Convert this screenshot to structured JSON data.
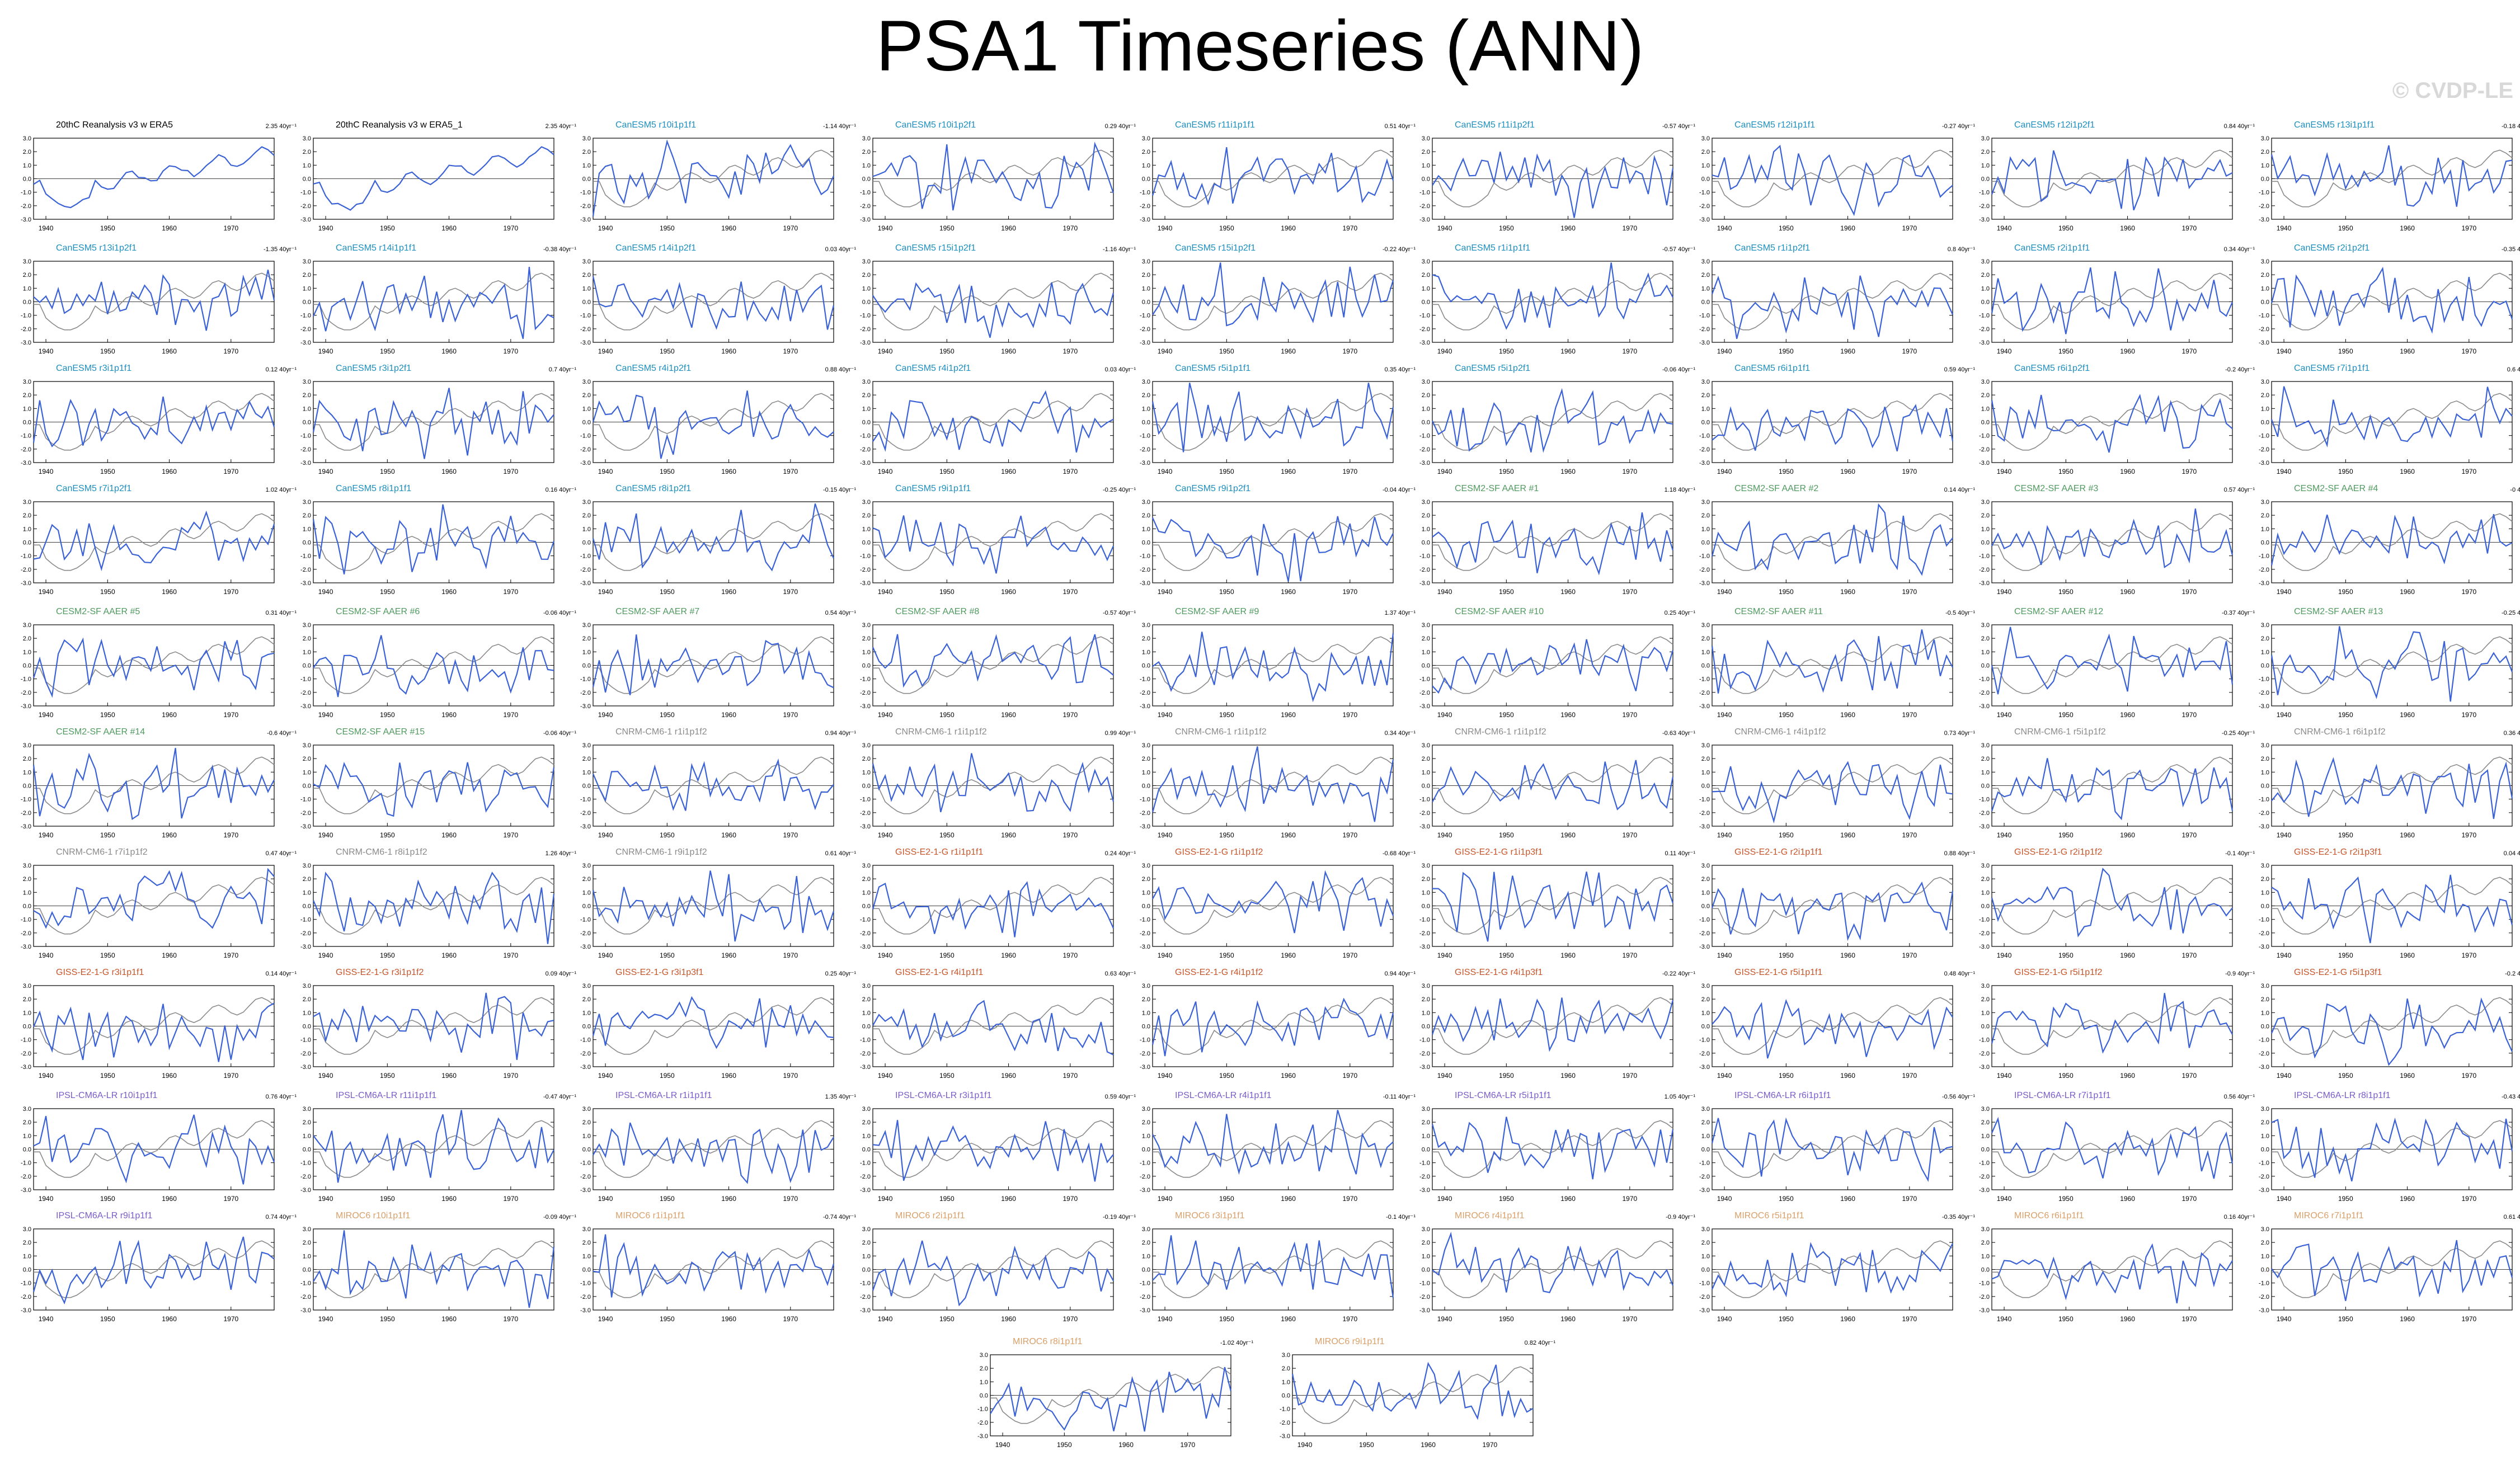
{
  "title": "PSA1 Timeseries (ANN)",
  "watermark": "© CVDP-LE",
  "colors": {
    "member_line": "#3a62d6",
    "observed_line": "#8a8a8a",
    "obs_label": "#000000",
    "CanESM5": "#1d8fbf",
    "CESM2-SF AAER": "#4f9a5e",
    "CNRM-CM6-1": "#8a8a8a",
    "GISS-E2-1-G": "#c8552a",
    "IPSL-CM6A-LR": "#7a5cc9",
    "MIROC6": "#d9a06a"
  },
  "chart_data": {
    "type": "line",
    "layout": "small multiples of annual PSA1 index timeseries",
    "x_ticks": [
      1940,
      1950,
      1960,
      1970
    ],
    "xlim": [
      1938,
      1977
    ],
    "y_ticks": [
      "3.0",
      "2.0",
      "1.0",
      "0.0",
      "-1.0",
      "-2.0",
      "-3.0"
    ],
    "ylim": [
      -3,
      3
    ],
    "trend_unit": "40yr⁻¹",
    "panels": [
      {
        "name": "20thC Reanalysis v3 w ERA5",
        "group": "obs",
        "trend": "2.35 40yr⁻¹"
      },
      {
        "name": "20thC Reanalysis v3 w ERA5_1",
        "group": "obs",
        "trend": "2.35 40yr⁻¹"
      },
      {
        "name": "CanESM5 r10i1p1f1",
        "group": "CanESM5",
        "trend": "-1.14 40yr⁻¹"
      },
      {
        "name": "CanESM5 r10i1p2f1",
        "group": "CanESM5",
        "trend": "0.29 40yr⁻¹"
      },
      {
        "name": "CanESM5 r11i1p1f1",
        "group": "CanESM5",
        "trend": "0.51 40yr⁻¹"
      },
      {
        "name": "CanESM5 r11i1p2f1",
        "group": "CanESM5",
        "trend": "-0.57 40yr⁻¹"
      },
      {
        "name": "CanESM5 r12i1p1f1",
        "group": "CanESM5",
        "trend": "-0.27 40yr⁻¹"
      },
      {
        "name": "CanESM5 r12i1p2f1",
        "group": "CanESM5",
        "trend": "0.84 40yr⁻¹"
      },
      {
        "name": "CanESM5 r13i1p1f1",
        "group": "CanESM5",
        "trend": "-0.18 40yr⁻¹"
      },
      {
        "name": "CanESM5 r13i1p2f1",
        "group": "CanESM5",
        "trend": "-1.35 40yr⁻¹"
      },
      {
        "name": "CanESM5 r14i1p1f1",
        "group": "CanESM5",
        "trend": "-0.38 40yr⁻¹"
      },
      {
        "name": "CanESM5 r14i1p2f1",
        "group": "CanESM5",
        "trend": "0.03 40yr⁻¹"
      },
      {
        "name": "CanESM5 r15i1p2f1",
        "group": "CanESM5",
        "trend": "-1.16 40yr⁻¹"
      },
      {
        "name": "CanESM5 r15i1p2f1",
        "group": "CanESM5",
        "trend": "-0.22 40yr⁻¹"
      },
      {
        "name": "CanESM5 r1i1p1f1",
        "group": "CanESM5",
        "trend": "-0.57 40yr⁻¹"
      },
      {
        "name": "CanESM5 r1i1p2f1",
        "group": "CanESM5",
        "trend": "0.8 40yr⁻¹"
      },
      {
        "name": "CanESM5 r2i1p1f1",
        "group": "CanESM5",
        "trend": "0.34 40yr⁻¹"
      },
      {
        "name": "CanESM5 r2i1p2f1",
        "group": "CanESM5",
        "trend": "-0.35 40yr⁻¹"
      },
      {
        "name": "CanESM5 r3i1p1f1",
        "group": "CanESM5",
        "trend": "0.12 40yr⁻¹"
      },
      {
        "name": "CanESM5 r3i1p2f1",
        "group": "CanESM5",
        "trend": "0.7 40yr⁻¹"
      },
      {
        "name": "CanESM5 r4i1p2f1",
        "group": "CanESM5",
        "trend": "0.88 40yr⁻¹"
      },
      {
        "name": "CanESM5 r4i1p2f1",
        "group": "CanESM5",
        "trend": "0.03 40yr⁻¹"
      },
      {
        "name": "CanESM5 r5i1p1f1",
        "group": "CanESM5",
        "trend": "0.35 40yr⁻¹"
      },
      {
        "name": "CanESM5 r5i1p2f1",
        "group": "CanESM5",
        "trend": "-0.06 40yr⁻¹"
      },
      {
        "name": "CanESM5 r6i1p1f1",
        "group": "CanESM5",
        "trend": "0.59 40yr⁻¹"
      },
      {
        "name": "CanESM5 r6i1p2f1",
        "group": "CanESM5",
        "trend": "-0.2 40yr⁻¹"
      },
      {
        "name": "CanESM5 r7i1p1f1",
        "group": "CanESM5",
        "trend": "0.6 40yr⁻¹"
      },
      {
        "name": "CanESM5 r7i1p2f1",
        "group": "CanESM5",
        "trend": "1.02 40yr⁻¹"
      },
      {
        "name": "CanESM5 r8i1p1f1",
        "group": "CanESM5",
        "trend": "0.16 40yr⁻¹"
      },
      {
        "name": "CanESM5 r8i1p2f1",
        "group": "CanESM5",
        "trend": "-0.15 40yr⁻¹"
      },
      {
        "name": "CanESM5 r9i1p1f1",
        "group": "CanESM5",
        "trend": "-0.25 40yr⁻¹"
      },
      {
        "name": "CanESM5 r9i1p2f1",
        "group": "CanESM5",
        "trend": "-0.04 40yr⁻¹"
      },
      {
        "name": "CESM2-SF AAER #1",
        "group": "CESM2-SF AAER",
        "trend": "1.18 40yr⁻¹"
      },
      {
        "name": "CESM2-SF AAER #2",
        "group": "CESM2-SF AAER",
        "trend": "0.14 40yr⁻¹"
      },
      {
        "name": "CESM2-SF AAER #3",
        "group": "CESM2-SF AAER",
        "trend": "0.57 40yr⁻¹"
      },
      {
        "name": "CESM2-SF AAER #4",
        "group": "CESM2-SF AAER",
        "trend": "-0 40yr⁻¹"
      },
      {
        "name": "CESM2-SF AAER #5",
        "group": "CESM2-SF AAER",
        "trend": "0.31 40yr⁻¹"
      },
      {
        "name": "CESM2-SF AAER #6",
        "group": "CESM2-SF AAER",
        "trend": "-0.06 40yr⁻¹"
      },
      {
        "name": "CESM2-SF AAER #7",
        "group": "CESM2-SF AAER",
        "trend": "0.54 40yr⁻¹"
      },
      {
        "name": "CESM2-SF AAER #8",
        "group": "CESM2-SF AAER",
        "trend": "-0.57 40yr⁻¹"
      },
      {
        "name": "CESM2-SF AAER #9",
        "group": "CESM2-SF AAER",
        "trend": "1.37 40yr⁻¹"
      },
      {
        "name": "CESM2-SF AAER #10",
        "group": "CESM2-SF AAER",
        "trend": "0.25 40yr⁻¹"
      },
      {
        "name": "CESM2-SF AAER #11",
        "group": "CESM2-SF AAER",
        "trend": "-0.5 40yr⁻¹"
      },
      {
        "name": "CESM2-SF AAER #12",
        "group": "CESM2-SF AAER",
        "trend": "-0.37 40yr⁻¹"
      },
      {
        "name": "CESM2-SF AAER #13",
        "group": "CESM2-SF AAER",
        "trend": "-0.25 40yr⁻¹"
      },
      {
        "name": "CESM2-SF AAER #14",
        "group": "CESM2-SF AAER",
        "trend": "-0.6 40yr⁻¹"
      },
      {
        "name": "CESM2-SF AAER #15",
        "group": "CESM2-SF AAER",
        "trend": "-0.06 40yr⁻¹"
      },
      {
        "name": "CNRM-CM6-1 r1i1p1f2",
        "group": "CNRM-CM6-1",
        "trend": "0.94 40yr⁻¹"
      },
      {
        "name": "CNRM-CM6-1 r1i1p1f2",
        "group": "CNRM-CM6-1",
        "trend": "0.99 40yr⁻¹"
      },
      {
        "name": "CNRM-CM6-1 r1i1p1f2",
        "group": "CNRM-CM6-1",
        "trend": "0.34 40yr⁻¹"
      },
      {
        "name": "CNRM-CM6-1 r1i1p1f2",
        "group": "CNRM-CM6-1",
        "trend": "-0.63 40yr⁻¹"
      },
      {
        "name": "CNRM-CM6-1 r4i1p1f2",
        "group": "CNRM-CM6-1",
        "trend": "0.73 40yr⁻¹"
      },
      {
        "name": "CNRM-CM6-1 r5i1p1f2",
        "group": "CNRM-CM6-1",
        "trend": "-0.25 40yr⁻¹"
      },
      {
        "name": "CNRM-CM6-1 r6i1p1f2",
        "group": "CNRM-CM6-1",
        "trend": "0.36 40yr⁻¹"
      },
      {
        "name": "CNRM-CM6-1 r7i1p1f2",
        "group": "CNRM-CM6-1",
        "trend": "0.47 40yr⁻¹"
      },
      {
        "name": "CNRM-CM6-1 r8i1p1f2",
        "group": "CNRM-CM6-1",
        "trend": "1.26 40yr⁻¹"
      },
      {
        "name": "CNRM-CM6-1 r9i1p1f2",
        "group": "CNRM-CM6-1",
        "trend": "0.61 40yr⁻¹"
      },
      {
        "name": "GISS-E2-1-G r1i1p1f1",
        "group": "GISS-E2-1-G",
        "trend": "0.24 40yr⁻¹"
      },
      {
        "name": "GISS-E2-1-G r1i1p1f2",
        "group": "GISS-E2-1-G",
        "trend": "-0.68 40yr⁻¹"
      },
      {
        "name": "GISS-E2-1-G r1i1p3f1",
        "group": "GISS-E2-1-G",
        "trend": "0.11 40yr⁻¹"
      },
      {
        "name": "GISS-E2-1-G r2i1p1f1",
        "group": "GISS-E2-1-G",
        "trend": "0.88 40yr⁻¹"
      },
      {
        "name": "GISS-E2-1-G r2i1p1f2",
        "group": "GISS-E2-1-G",
        "trend": "-0.1 40yr⁻¹"
      },
      {
        "name": "GISS-E2-1-G r2i1p3f1",
        "group": "GISS-E2-1-G",
        "trend": "0.04 40yr⁻¹"
      },
      {
        "name": "GISS-E2-1-G r3i1p1f1",
        "group": "GISS-E2-1-G",
        "trend": "0.14 40yr⁻¹"
      },
      {
        "name": "GISS-E2-1-G r3i1p1f2",
        "group": "GISS-E2-1-G",
        "trend": "0.09 40yr⁻¹"
      },
      {
        "name": "GISS-E2-1-G r3i1p3f1",
        "group": "GISS-E2-1-G",
        "trend": "0.25 40yr⁻¹"
      },
      {
        "name": "GISS-E2-1-G r4i1p1f1",
        "group": "GISS-E2-1-G",
        "trend": "0.63 40yr⁻¹"
      },
      {
        "name": "GISS-E2-1-G r4i1p1f2",
        "group": "GISS-E2-1-G",
        "trend": "0.94 40yr⁻¹"
      },
      {
        "name": "GISS-E2-1-G r4i1p3f1",
        "group": "GISS-E2-1-G",
        "trend": "-0.22 40yr⁻¹"
      },
      {
        "name": "GISS-E2-1-G r5i1p1f1",
        "group": "GISS-E2-1-G",
        "trend": "0.48 40yr⁻¹"
      },
      {
        "name": "GISS-E2-1-G r5i1p1f2",
        "group": "GISS-E2-1-G",
        "trend": "-0.9 40yr⁻¹"
      },
      {
        "name": "GISS-E2-1-G r5i1p3f1",
        "group": "GISS-E2-1-G",
        "trend": "-0.2 40yr⁻¹"
      },
      {
        "name": "IPSL-CM6A-LR r10i1p1f1",
        "group": "IPSL-CM6A-LR",
        "trend": "0.76 40yr⁻¹"
      },
      {
        "name": "IPSL-CM6A-LR r11i1p1f1",
        "group": "IPSL-CM6A-LR",
        "trend": "-0.47 40yr⁻¹"
      },
      {
        "name": "IPSL-CM6A-LR r1i1p1f1",
        "group": "IPSL-CM6A-LR",
        "trend": "1.35 40yr⁻¹"
      },
      {
        "name": "IPSL-CM6A-LR r3i1p1f1",
        "group": "IPSL-CM6A-LR",
        "trend": "0.59 40yr⁻¹"
      },
      {
        "name": "IPSL-CM6A-LR r4i1p1f1",
        "group": "IPSL-CM6A-LR",
        "trend": "-0.11 40yr⁻¹"
      },
      {
        "name": "IPSL-CM6A-LR r5i1p1f1",
        "group": "IPSL-CM6A-LR",
        "trend": "1.05 40yr⁻¹"
      },
      {
        "name": "IPSL-CM6A-LR r6i1p1f1",
        "group": "IPSL-CM6A-LR",
        "trend": "-0.56 40yr⁻¹"
      },
      {
        "name": "IPSL-CM6A-LR r7i1p1f1",
        "group": "IPSL-CM6A-LR",
        "trend": "0.56 40yr⁻¹"
      },
      {
        "name": "IPSL-CM6A-LR r8i1p1f1",
        "group": "IPSL-CM6A-LR",
        "trend": "-0.43 40yr⁻¹"
      },
      {
        "name": "IPSL-CM6A-LR r9i1p1f1",
        "group": "IPSL-CM6A-LR",
        "trend": "0.74 40yr⁻¹"
      },
      {
        "name": "MIROC6 r10i1p1f1",
        "group": "MIROC6",
        "trend": "-0.09 40yr⁻¹"
      },
      {
        "name": "MIROC6 r1i1p1f1",
        "group": "MIROC6",
        "trend": "-0.74 40yr⁻¹"
      },
      {
        "name": "MIROC6 r2i1p1f1",
        "group": "MIROC6",
        "trend": "-0.19 40yr⁻¹"
      },
      {
        "name": "MIROC6 r3i1p1f1",
        "group": "MIROC6",
        "trend": "-0.1 40yr⁻¹"
      },
      {
        "name": "MIROC6 r4i1p1f1",
        "group": "MIROC6",
        "trend": "-0.9 40yr⁻¹"
      },
      {
        "name": "MIROC6 r5i1p1f1",
        "group": "MIROC6",
        "trend": "-0.35 40yr⁻¹"
      },
      {
        "name": "MIROC6 r6i1p1f1",
        "group": "MIROC6",
        "trend": "0.16 40yr⁻¹"
      },
      {
        "name": "MIROC6 r7i1p1f1",
        "group": "MIROC6",
        "trend": "0.61 40yr⁻¹"
      },
      {
        "name": "MIROC6 r8i1p1f1",
        "group": "MIROC6",
        "trend": "-1.02 40yr⁻¹"
      },
      {
        "name": "MIROC6 r9i1p1f1",
        "group": "MIROC6",
        "trend": "0.82 40yr⁻¹"
      }
    ]
  }
}
